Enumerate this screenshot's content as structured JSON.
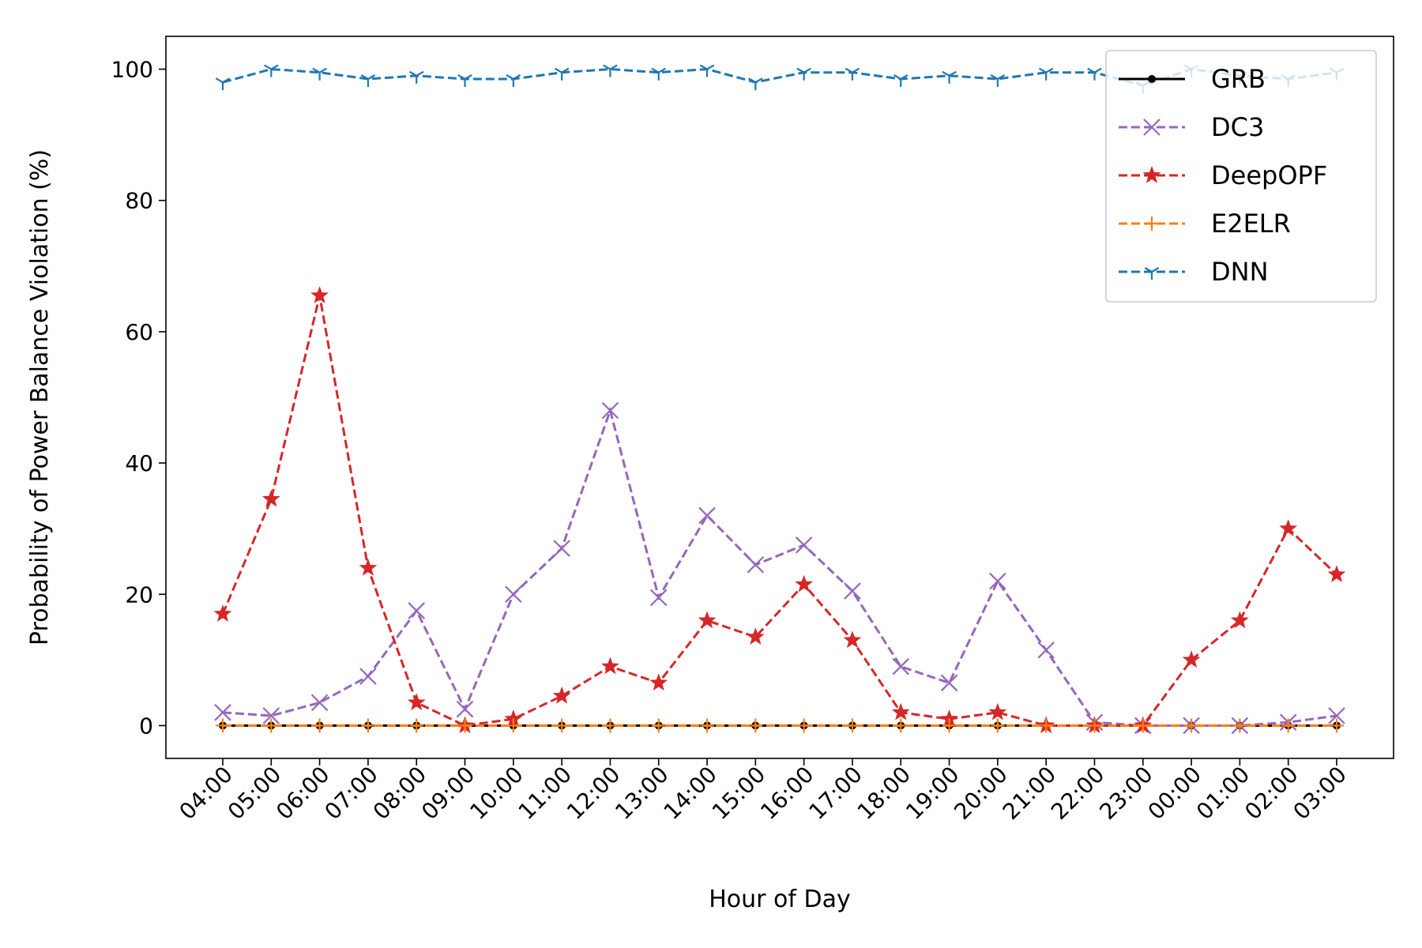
{
  "chart_data": {
    "type": "line",
    "xlabel": "Hour of Day",
    "ylabel": "Probability of Power Balance Violation (%)",
    "ylim": [
      -5,
      105
    ],
    "yticks": [
      0,
      20,
      40,
      60,
      80,
      100
    ],
    "grid": false,
    "legend_position": "top-right",
    "categories": [
      "04:00",
      "05:00",
      "06:00",
      "07:00",
      "08:00",
      "09:00",
      "10:00",
      "11:00",
      "12:00",
      "13:00",
      "14:00",
      "15:00",
      "16:00",
      "17:00",
      "18:00",
      "19:00",
      "20:00",
      "21:00",
      "22:00",
      "23:00",
      "00:00",
      "01:00",
      "02:00",
      "03:00"
    ],
    "series": [
      {
        "name": "GRB",
        "color": "#000000",
        "linestyle": "solid",
        "marker": "dot",
        "values": [
          0,
          0,
          0,
          0,
          0,
          0,
          0,
          0,
          0,
          0,
          0,
          0,
          0,
          0,
          0,
          0,
          0,
          0,
          0,
          0,
          0,
          0,
          0,
          0
        ]
      },
      {
        "name": "DC3",
        "color": "#9467bd",
        "linestyle": "dashed",
        "marker": "x",
        "values": [
          2,
          1.5,
          3.5,
          7.5,
          17.5,
          2.5,
          20,
          27,
          48,
          19.5,
          32,
          24.5,
          27.5,
          20.5,
          9,
          6.5,
          22,
          11.5,
          0.5,
          0,
          0,
          0,
          0.5,
          1.5
        ]
      },
      {
        "name": "DeepOPF",
        "color": "#d62728",
        "linestyle": "dashed",
        "marker": "star",
        "values": [
          17,
          34.5,
          65.5,
          24,
          3.5,
          0,
          1,
          4.5,
          9,
          6.5,
          16,
          13.5,
          21.5,
          13,
          2,
          1,
          2,
          0,
          0,
          0,
          10,
          16,
          30,
          23
        ]
      },
      {
        "name": "E2ELR",
        "color": "#ff7f0e",
        "linestyle": "dashed",
        "marker": "plus",
        "values": [
          0,
          0,
          0,
          0,
          0,
          0,
          0,
          0,
          0,
          0,
          0,
          0,
          0,
          0,
          0,
          0,
          0,
          0,
          0,
          0,
          0,
          0,
          0,
          0
        ]
      },
      {
        "name": "DNN",
        "color": "#1f77b4",
        "linestyle": "dashed",
        "marker": "tri-down",
        "values": [
          98,
          100,
          99.5,
          98.5,
          99,
          98.5,
          98.5,
          99.5,
          100,
          99.5,
          100,
          98,
          99.5,
          99.5,
          98.5,
          99,
          98.5,
          99.5,
          99.5,
          97.5,
          100,
          99,
          98.5,
          99.5
        ]
      }
    ]
  }
}
